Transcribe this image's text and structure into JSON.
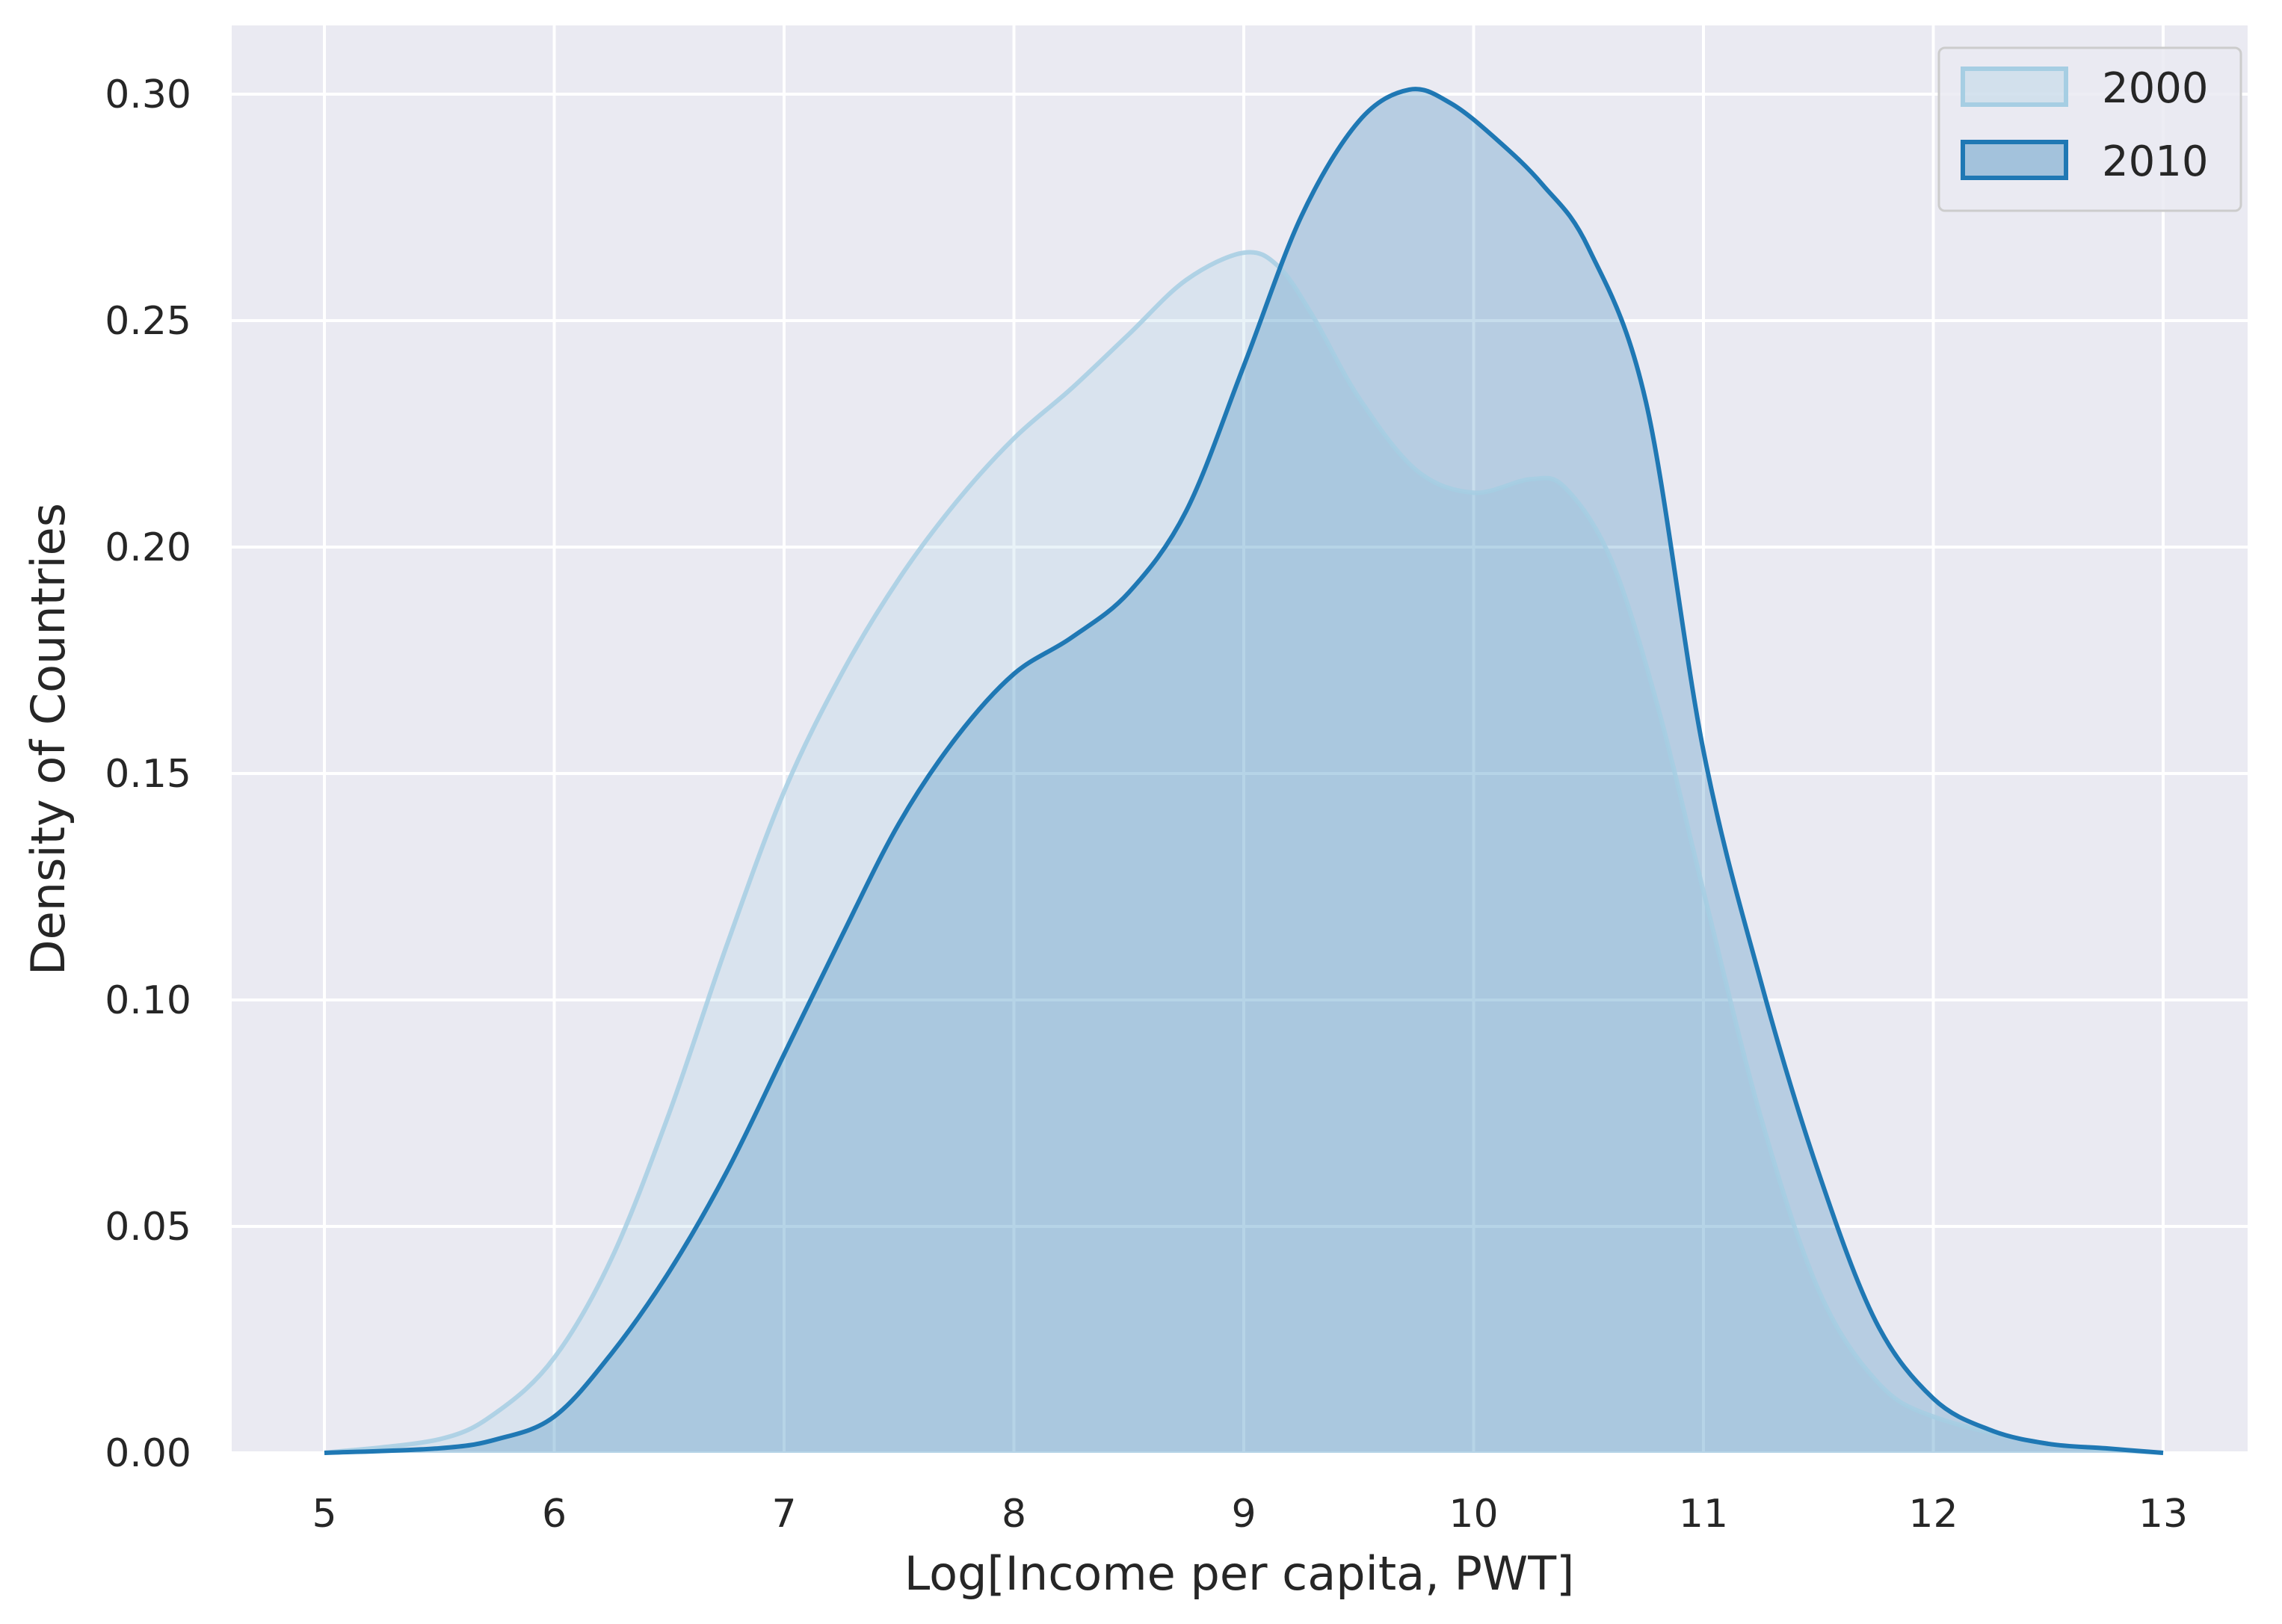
{
  "chart_data": {
    "type": "area",
    "title": "",
    "xlabel": "Log[Income per capita, PWT]",
    "ylabel": "Density of Countries",
    "xlim": [
      4.6,
      13.35
    ],
    "ylim": [
      0,
      0.315
    ],
    "xticks": [
      5,
      6,
      7,
      8,
      9,
      10,
      11,
      12,
      13
    ],
    "xtick_labels": [
      "5",
      "6",
      "7",
      "8",
      "9",
      "10",
      "11",
      "12",
      "13"
    ],
    "yticks": [
      0.0,
      0.05,
      0.1,
      0.15,
      0.2,
      0.25,
      0.3
    ],
    "ytick_labels": [
      "0.00",
      "0.05",
      "0.10",
      "0.15",
      "0.20",
      "0.25",
      "0.30"
    ],
    "grid": true,
    "legend_position": "top-right",
    "background_color": "#EAEAF2",
    "series": [
      {
        "name": "2000",
        "color": "#A6CEE3",
        "x": [
          5.0,
          5.5,
          5.75,
          6.0,
          6.25,
          6.5,
          6.75,
          7.0,
          7.25,
          7.5,
          7.75,
          8.0,
          8.25,
          8.5,
          8.75,
          9.0,
          9.15,
          9.3,
          9.5,
          9.75,
          10.0,
          10.25,
          10.4,
          10.6,
          10.8,
          11.0,
          11.25,
          11.5,
          11.75,
          12.0,
          12.5,
          13.0
        ],
        "y": [
          0.0,
          0.003,
          0.009,
          0.021,
          0.043,
          0.075,
          0.112,
          0.146,
          0.172,
          0.193,
          0.21,
          0.224,
          0.235,
          0.247,
          0.259,
          0.265,
          0.262,
          0.251,
          0.233,
          0.217,
          0.212,
          0.215,
          0.213,
          0.197,
          0.165,
          0.124,
          0.074,
          0.036,
          0.016,
          0.008,
          0.002,
          0.0
        ]
      },
      {
        "name": "2010",
        "color": "#1F78B4",
        "x": [
          5.0,
          5.5,
          5.75,
          6.0,
          6.25,
          6.5,
          6.75,
          7.0,
          7.25,
          7.5,
          7.75,
          8.0,
          8.25,
          8.5,
          8.75,
          9.0,
          9.25,
          9.5,
          9.72,
          9.9,
          10.1,
          10.3,
          10.5,
          10.75,
          11.0,
          11.25,
          11.5,
          11.75,
          12.0,
          12.25,
          12.5,
          12.75,
          13.0
        ],
        "y": [
          0.0,
          0.001,
          0.003,
          0.008,
          0.022,
          0.04,
          0.062,
          0.088,
          0.114,
          0.139,
          0.158,
          0.172,
          0.18,
          0.19,
          0.208,
          0.24,
          0.273,
          0.294,
          0.301,
          0.298,
          0.29,
          0.28,
          0.266,
          0.232,
          0.155,
          0.104,
          0.062,
          0.029,
          0.012,
          0.005,
          0.002,
          0.001,
          0.0
        ]
      }
    ]
  }
}
